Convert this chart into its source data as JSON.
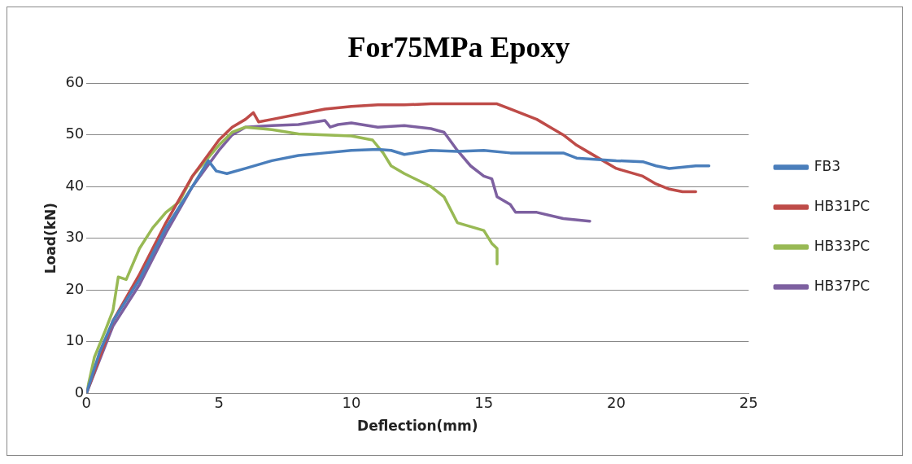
{
  "chart_data": {
    "type": "line",
    "title": "For75MPa Epoxy",
    "xlabel": "Deflection(mm)",
    "ylabel": "Load(kN)",
    "xlim": [
      0,
      25
    ],
    "xticks": [
      0,
      5,
      10,
      15,
      20,
      25
    ],
    "ylim": [
      0,
      60
    ],
    "yticks": [
      0,
      10,
      20,
      30,
      40,
      50,
      60
    ],
    "grid": "y",
    "legend": "right",
    "marker": "none",
    "line_style": "solid",
    "series": [
      {
        "name": "FB3",
        "color": "#4a7ebb",
        "x": [
          0,
          0.5,
          1,
          2,
          3,
          4,
          4.6,
          4.9,
          5.3,
          6,
          7,
          8,
          9,
          10,
          11,
          11.5,
          12,
          13,
          14,
          15,
          16,
          17,
          18,
          18.5,
          20,
          21,
          21.5,
          22,
          23,
          23.5
        ],
        "values": [
          0,
          8,
          14,
          22,
          32,
          40,
          45,
          43,
          42.5,
          43.5,
          45,
          46,
          46.5,
          47,
          47.2,
          47,
          46.2,
          47,
          46.8,
          47,
          46.5,
          46.5,
          46.5,
          45.5,
          45,
          44.8,
          44,
          43.5,
          44,
          44
        ]
      },
      {
        "name": "HB31PC",
        "color": "#be4b48",
        "x": [
          0,
          1,
          2,
          3,
          4,
          5,
          5.5,
          6,
          6.3,
          6.5,
          7,
          8,
          9,
          10,
          11,
          12,
          13,
          14,
          15,
          15.5,
          16,
          17,
          17.5,
          18,
          18.5,
          19,
          20,
          21,
          21.5,
          22,
          22.5,
          23
        ],
        "values": [
          0,
          14,
          23,
          33,
          42,
          49,
          51.5,
          53,
          54.3,
          52.5,
          53,
          54,
          55,
          55.5,
          55.8,
          55.8,
          56,
          56,
          56,
          56,
          55,
          53,
          51.5,
          50,
          48,
          46.5,
          43.5,
          42,
          40.5,
          39.5,
          39,
          39
        ]
      },
      {
        "name": "HB33PC",
        "color": "#98b954",
        "x": [
          0,
          0.3,
          0.7,
          1,
          1.2,
          1.5,
          2,
          2.5,
          3,
          3.5,
          4,
          5,
          5.5,
          6,
          7,
          8,
          9,
          10,
          10.8,
          11.2,
          11.5,
          12,
          13,
          13.5,
          14,
          15,
          15.3,
          15.5,
          15.5
        ],
        "values": [
          0,
          7,
          12,
          16,
          22.5,
          22,
          28,
          32,
          35,
          37,
          42,
          48,
          50.5,
          51.5,
          51,
          50.2,
          50,
          49.8,
          49,
          46.5,
          44,
          42.5,
          40,
          38,
          33,
          31.5,
          29,
          28,
          25
        ]
      },
      {
        "name": "HB37PC",
        "color": "#7d60a0",
        "x": [
          0,
          1,
          2,
          3,
          4,
          5,
          5.5,
          6,
          7,
          8,
          9,
          9.2,
          9.5,
          10,
          11,
          12,
          13,
          13.5,
          14,
          14.5,
          15,
          15.3,
          15.5,
          16,
          16.2,
          17,
          18,
          19
        ],
        "values": [
          0,
          13,
          21,
          31,
          40,
          47,
          50,
          51.5,
          51.8,
          52,
          52.8,
          51.5,
          52,
          52.3,
          51.5,
          51.8,
          51.2,
          50.5,
          47,
          44,
          42,
          41.5,
          38,
          36.5,
          35,
          35,
          33.8,
          33.3
        ]
      }
    ]
  }
}
